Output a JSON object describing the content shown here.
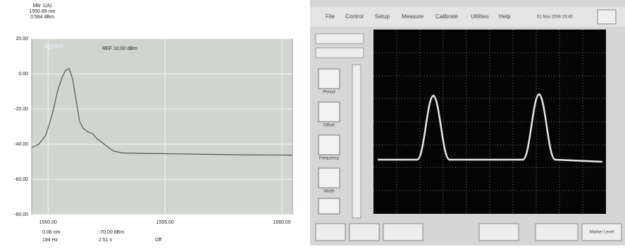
{
  "chart_data": {
    "type": "line",
    "header": [
      "Mkr 1(A)",
      "1550.89 nm",
      "0.584 dBm"
    ],
    "brand": "Agilent",
    "reference": "REF 10.00 dBm",
    "x": [
      1549.3,
      1549.6,
      1549.9,
      1550.2,
      1550.4,
      1550.6,
      1550.75,
      1550.9,
      1551.05,
      1551.2,
      1551.35,
      1551.5,
      1551.7,
      1551.9,
      1552.1,
      1552.3,
      1552.5,
      1552.8,
      1553.2,
      1554,
      1555,
      1556,
      1557,
      1558,
      1559,
      1560.45
    ],
    "series": [
      {
        "color": "#555555",
        "values": [
          -42,
          -40,
          -35,
          -22,
          -10,
          -2,
          2,
          3,
          -3,
          -15,
          -27,
          -31,
          -33,
          -34,
          -37,
          -39,
          -41,
          -44,
          -45,
          -45.2,
          -45.4,
          -45.6,
          -45.8,
          -46,
          -46.1,
          -46.2
        ]
      }
    ],
    "xlim": [
      1549.3,
      1560.45
    ],
    "xticks": [
      {
        "value": 1550,
        "label": "1550.00"
      },
      {
        "value": 1555,
        "label": "1555.00"
      },
      {
        "value": 1560,
        "label": "1560.00"
      }
    ],
    "ylim": [
      -80,
      20
    ],
    "yticks": [
      {
        "value": 20,
        "label": "20.00"
      },
      {
        "value": 0,
        "label": "0.00"
      },
      {
        "value": -20,
        "label": "-20.00"
      },
      {
        "value": -40,
        "label": "-40.00"
      },
      {
        "value": -60,
        "label": "-60.00"
      },
      {
        "value": -80,
        "label": "-80.00"
      }
    ],
    "grid": true,
    "footer": [
      "0.06 nm",
      "194 Hz",
      "-70.00 dBm",
      "2.51 s",
      "Off"
    ]
  },
  "scope": {
    "menu": [
      "File",
      "Control",
      "Setup",
      "Measure",
      "Calibrate",
      "Utilities",
      "Help"
    ],
    "date": "01 Nov 2006 23:40",
    "side_buttons": [
      "Period",
      "Offset",
      "Frequency",
      "Width"
    ],
    "bottom_button": "Marker Level"
  }
}
